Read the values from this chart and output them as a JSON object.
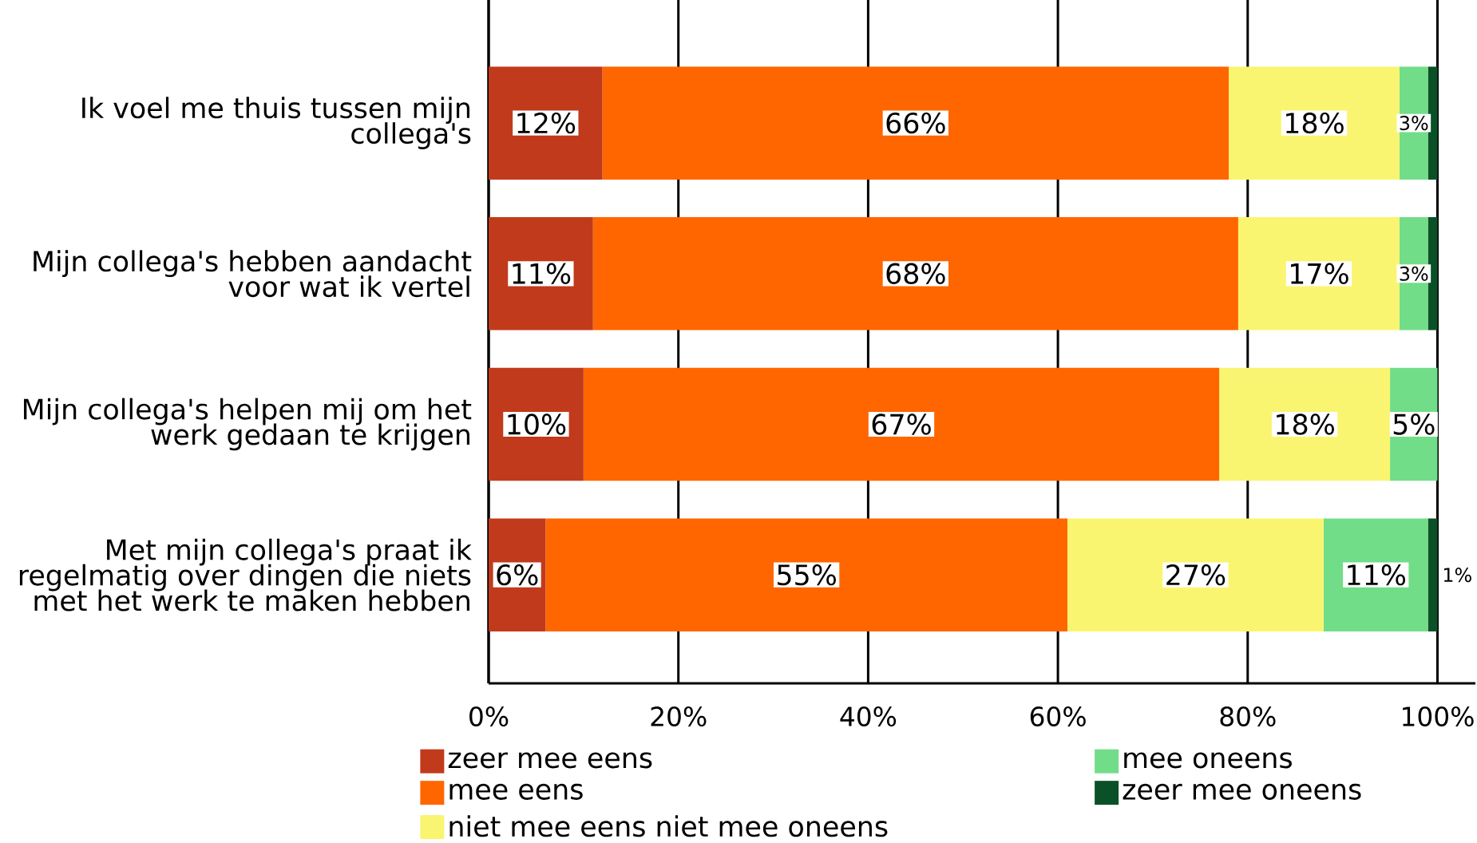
{
  "chart_data": {
    "type": "bar",
    "orientation": "horizontal",
    "stacked": true,
    "categories": [
      "Ik voel me thuis tussen mijn collega's",
      "Mijn collega's hebben aandacht voor wat ik vertel",
      "Mijn collega's helpen mij om het werk gedaan te krijgen",
      "Met mijn collega's praat ik regelmatig over dingen die niets met het werk te maken hebben"
    ],
    "series": [
      {
        "name": "zeer mee eens",
        "color": "#c13a1b",
        "values": [
          12,
          11,
          10,
          6
        ],
        "value_labels": [
          "12%",
          "11%",
          "10%",
          "6%"
        ]
      },
      {
        "name": "mee eens",
        "color": "#ff6600",
        "values": [
          66,
          68,
          67,
          55
        ],
        "value_labels": [
          "66%",
          "68%",
          "67%",
          "55%"
        ]
      },
      {
        "name": "niet mee eens niet mee oneens",
        "color": "#faf571",
        "values": [
          18,
          17,
          18,
          27
        ],
        "value_labels": [
          "18%",
          "17%",
          "18%",
          "27%"
        ]
      },
      {
        "name": "mee oneens",
        "color": "#72dd88",
        "values": [
          3,
          3,
          5,
          11
        ],
        "value_labels": [
          "3%",
          "3%",
          "5%",
          "11%"
        ]
      },
      {
        "name": "zeer mee oneens",
        "color": "#0a5127",
        "values": [
          1,
          1,
          null,
          1
        ],
        "value_labels": [
          null,
          null,
          null,
          "1%"
        ]
      }
    ],
    "xlim": [
      0,
      104
    ],
    "xticks": [
      {
        "value": 0,
        "label": "0%"
      },
      {
        "value": 20,
        "label": "20%"
      },
      {
        "value": 40,
        "label": "40%"
      },
      {
        "value": 60,
        "label": "60%"
      },
      {
        "value": 80,
        "label": "80%"
      },
      {
        "value": 100,
        "label": "100%"
      }
    ],
    "grid": "x",
    "legend": "bottom"
  }
}
